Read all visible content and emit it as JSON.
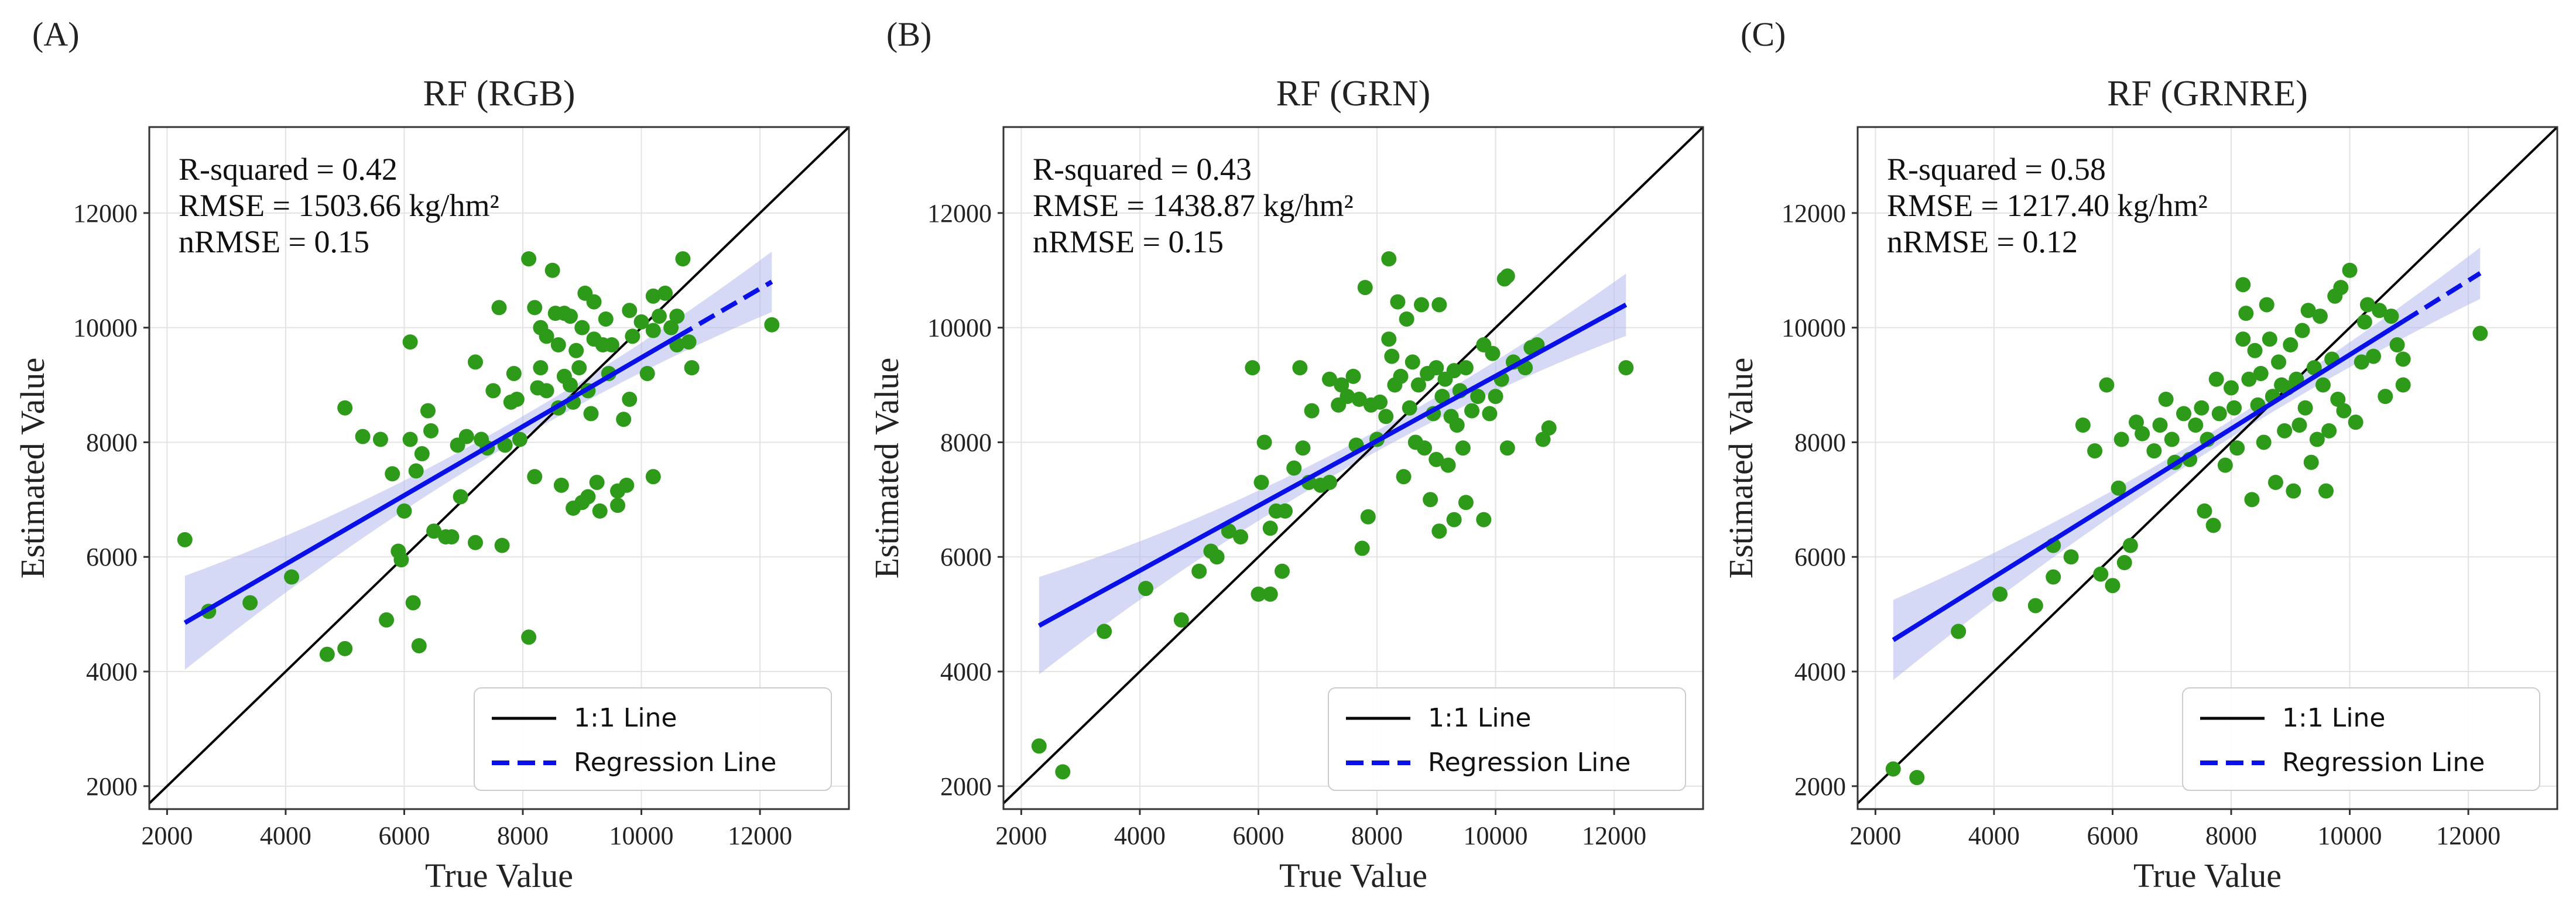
{
  "figure": {
    "panel_labels": [
      "(A)",
      "(B)",
      "(C)"
    ]
  },
  "colors": {
    "points": "#2e9a1a",
    "identity_line": "#000000",
    "regression_line": "#0a10e8",
    "confidence_band": "#b5b9ec",
    "grid": "#e3e3e3",
    "axes": "#333333"
  },
  "chart_data": [
    {
      "type": "scatter",
      "panel_label": "(A)",
      "title": "RF (RGB)",
      "xlabel": "True Value",
      "ylabel": "Estimated Value",
      "xlim": [
        1700,
        13500
      ],
      "ylim": [
        1600,
        13500
      ],
      "xticks": [
        2000,
        4000,
        6000,
        8000,
        10000,
        12000
      ],
      "yticks": [
        2000,
        4000,
        6000,
        8000,
        10000,
        12000
      ],
      "grid": true,
      "stats": [
        "R-squared = 0.42",
        "RMSE = 1503.66 kg/hm²",
        "nRMSE = 0.15"
      ],
      "legend": {
        "position": "bottom-right",
        "identity_label": "1:1 Line",
        "regression_label": "Regression Line"
      },
      "regression": {
        "x": [
          2300,
          12200
        ],
        "y": [
          4850,
          10800
        ],
        "dashed_from": 10600
      },
      "band": {
        "halfwidth_ends": 820,
        "halfwidth_center": 180,
        "center_x": 8000
      },
      "points": [
        [
          2300,
          6300
        ],
        [
          2700,
          5050
        ],
        [
          3400,
          5200
        ],
        [
          4100,
          5650
        ],
        [
          4700,
          4300
        ],
        [
          5000,
          8600
        ],
        [
          5000,
          4400
        ],
        [
          5300,
          8100
        ],
        [
          5600,
          8050
        ],
        [
          5700,
          4900
        ],
        [
          5800,
          7450
        ],
        [
          5900,
          6100
        ],
        [
          5950,
          5950
        ],
        [
          6000,
          6800
        ],
        [
          6100,
          9750
        ],
        [
          6100,
          8050
        ],
        [
          6150,
          5200
        ],
        [
          6200,
          7500
        ],
        [
          6250,
          4450
        ],
        [
          6300,
          7800
        ],
        [
          6400,
          8550
        ],
        [
          6450,
          8200
        ],
        [
          6500,
          6450
        ],
        [
          6700,
          6350
        ],
        [
          6800,
          6350
        ],
        [
          6900,
          7950
        ],
        [
          6950,
          7050
        ],
        [
          7050,
          8100
        ],
        [
          7200,
          9400
        ],
        [
          7200,
          6250
        ],
        [
          7300,
          8050
        ],
        [
          7400,
          7900
        ],
        [
          7500,
          8900
        ],
        [
          7600,
          10350
        ],
        [
          7650,
          6200
        ],
        [
          7700,
          7950
        ],
        [
          7800,
          8700
        ],
        [
          7850,
          9200
        ],
        [
          7900,
          8750
        ],
        [
          7950,
          8050
        ],
        [
          8100,
          11200
        ],
        [
          8100,
          4600
        ],
        [
          8200,
          10350
        ],
        [
          8200,
          7400
        ],
        [
          8250,
          8950
        ],
        [
          8300,
          10000
        ],
        [
          8300,
          9300
        ],
        [
          8400,
          9850
        ],
        [
          8400,
          8900
        ],
        [
          8500,
          11000
        ],
        [
          8550,
          10250
        ],
        [
          8600,
          9700
        ],
        [
          8600,
          8600
        ],
        [
          8650,
          7250
        ],
        [
          8700,
          10250
        ],
        [
          8700,
          9150
        ],
        [
          8800,
          10200
        ],
        [
          8800,
          9000
        ],
        [
          8850,
          8700
        ],
        [
          8850,
          6850
        ],
        [
          8900,
          9600
        ],
        [
          8950,
          9300
        ],
        [
          9000,
          10000
        ],
        [
          9000,
          6950
        ],
        [
          9050,
          10600
        ],
        [
          9100,
          8900
        ],
        [
          9100,
          7050
        ],
        [
          9150,
          8500
        ],
        [
          9200,
          10450
        ],
        [
          9200,
          9800
        ],
        [
          9250,
          7300
        ],
        [
          9300,
          6800
        ],
        [
          9350,
          9700
        ],
        [
          9400,
          10150
        ],
        [
          9450,
          9200
        ],
        [
          9500,
          9700
        ],
        [
          9600,
          7150
        ],
        [
          9600,
          6900
        ],
        [
          9700,
          8400
        ],
        [
          9750,
          7250
        ],
        [
          9800,
          10300
        ],
        [
          9800,
          8750
        ],
        [
          9850,
          9850
        ],
        [
          10000,
          10100
        ],
        [
          10100,
          9200
        ],
        [
          10200,
          10550
        ],
        [
          10200,
          9950
        ],
        [
          10200,
          7400
        ],
        [
          10300,
          10200
        ],
        [
          10400,
          10600
        ],
        [
          10500,
          10000
        ],
        [
          10600,
          10200
        ],
        [
          10600,
          9700
        ],
        [
          10700,
          11200
        ],
        [
          10800,
          9750
        ],
        [
          10850,
          9300
        ],
        [
          12200,
          10050
        ]
      ]
    },
    {
      "type": "scatter",
      "panel_label": "(B)",
      "title": "RF (GRN)",
      "xlabel": "True Value",
      "ylabel": "Estimated Value",
      "xlim": [
        1700,
        13500
      ],
      "ylim": [
        1600,
        13500
      ],
      "xticks": [
        2000,
        4000,
        6000,
        8000,
        10000,
        12000
      ],
      "yticks": [
        2000,
        4000,
        6000,
        8000,
        10000,
        12000
      ],
      "grid": true,
      "stats": [
        "R-squared = 0.43",
        "RMSE = 1438.87 kg/hm²",
        "nRMSE = 0.15"
      ],
      "legend": {
        "position": "bottom-right",
        "identity_label": "1:1 Line",
        "regression_label": "Regression Line"
      },
      "regression": {
        "x": [
          2300,
          12200
        ],
        "y": [
          4800,
          10400
        ],
        "dashed_from": 12300
      },
      "band": {
        "halfwidth_ends": 850,
        "halfwidth_center": 180,
        "center_x": 8000
      },
      "points": [
        [
          2300,
          2700
        ],
        [
          2700,
          2250
        ],
        [
          3400,
          4700
        ],
        [
          4100,
          5450
        ],
        [
          4700,
          4900
        ],
        [
          5000,
          5750
        ],
        [
          5200,
          6100
        ],
        [
          5300,
          6000
        ],
        [
          5500,
          6450
        ],
        [
          5700,
          6350
        ],
        [
          5900,
          9300
        ],
        [
          6000,
          5350
        ],
        [
          6050,
          7300
        ],
        [
          6100,
          8000
        ],
        [
          6200,
          5350
        ],
        [
          6200,
          6500
        ],
        [
          6300,
          6800
        ],
        [
          6400,
          5750
        ],
        [
          6450,
          6800
        ],
        [
          6600,
          7550
        ],
        [
          6700,
          9300
        ],
        [
          6750,
          7900
        ],
        [
          6850,
          7300
        ],
        [
          6900,
          8550
        ],
        [
          7050,
          7250
        ],
        [
          7200,
          9100
        ],
        [
          7200,
          7300
        ],
        [
          7350,
          8650
        ],
        [
          7400,
          9000
        ],
        [
          7500,
          8800
        ],
        [
          7600,
          9150
        ],
        [
          7650,
          7950
        ],
        [
          7700,
          8750
        ],
        [
          7750,
          6150
        ],
        [
          7800,
          10700
        ],
        [
          7850,
          6700
        ],
        [
          7900,
          8650
        ],
        [
          8000,
          8050
        ],
        [
          8050,
          8700
        ],
        [
          8150,
          8450
        ],
        [
          8200,
          11200
        ],
        [
          8200,
          9800
        ],
        [
          8250,
          9500
        ],
        [
          8300,
          9000
        ],
        [
          8350,
          10450
        ],
        [
          8400,
          9150
        ],
        [
          8450,
          7400
        ],
        [
          8500,
          10150
        ],
        [
          8550,
          8600
        ],
        [
          8600,
          9400
        ],
        [
          8650,
          8000
        ],
        [
          8700,
          9000
        ],
        [
          8750,
          10400
        ],
        [
          8800,
          7900
        ],
        [
          8850,
          9200
        ],
        [
          8900,
          7000
        ],
        [
          8950,
          8500
        ],
        [
          9000,
          9300
        ],
        [
          9000,
          7700
        ],
        [
          9050,
          10400
        ],
        [
          9050,
          6450
        ],
        [
          9100,
          8800
        ],
        [
          9150,
          9100
        ],
        [
          9200,
          7600
        ],
        [
          9250,
          8450
        ],
        [
          9300,
          9250
        ],
        [
          9300,
          6650
        ],
        [
          9350,
          8300
        ],
        [
          9400,
          8900
        ],
        [
          9450,
          7900
        ],
        [
          9500,
          9300
        ],
        [
          9500,
          6950
        ],
        [
          9600,
          8550
        ],
        [
          9700,
          8800
        ],
        [
          9800,
          9700
        ],
        [
          9800,
          6650
        ],
        [
          9900,
          8500
        ],
        [
          9950,
          9550
        ],
        [
          10000,
          8800
        ],
        [
          10100,
          9100
        ],
        [
          10150,
          10850
        ],
        [
          10200,
          10900
        ],
        [
          10200,
          7900
        ],
        [
          10300,
          9400
        ],
        [
          10500,
          9300
        ],
        [
          10600,
          9650
        ],
        [
          10700,
          9700
        ],
        [
          10800,
          8050
        ],
        [
          10900,
          8250
        ],
        [
          12200,
          9300
        ]
      ]
    },
    {
      "type": "scatter",
      "panel_label": "(C)",
      "title": "RF (GRNRE)",
      "xlabel": "True Value",
      "ylabel": "Estimated Value",
      "xlim": [
        1700,
        13500
      ],
      "ylim": [
        1600,
        13500
      ],
      "xticks": [
        2000,
        4000,
        6000,
        8000,
        10000,
        12000
      ],
      "yticks": [
        2000,
        4000,
        6000,
        8000,
        10000,
        12000
      ],
      "grid": true,
      "stats": [
        "R-squared = 0.58",
        "RMSE = 1217.40 kg/hm²",
        "nRMSE = 0.12"
      ],
      "legend": {
        "position": "bottom-right",
        "identity_label": "1:1 Line",
        "regression_label": "Regression Line"
      },
      "regression": {
        "x": [
          2300,
          12200
        ],
        "y": [
          4550,
          10950
        ],
        "dashed_from": 10900
      },
      "band": {
        "halfwidth_ends": 700,
        "halfwidth_center": 150,
        "center_x": 8000
      },
      "points": [
        [
          2300,
          2300
        ],
        [
          2700,
          2150
        ],
        [
          3400,
          4700
        ],
        [
          4100,
          5350
        ],
        [
          4700,
          5150
        ],
        [
          5000,
          5650
        ],
        [
          5000,
          6200
        ],
        [
          5300,
          6000
        ],
        [
          5500,
          8300
        ],
        [
          5700,
          7850
        ],
        [
          5800,
          5700
        ],
        [
          5900,
          9000
        ],
        [
          6000,
          5500
        ],
        [
          6100,
          7200
        ],
        [
          6150,
          8050
        ],
        [
          6200,
          5900
        ],
        [
          6300,
          6200
        ],
        [
          6400,
          8350
        ],
        [
          6500,
          8150
        ],
        [
          6700,
          7850
        ],
        [
          6800,
          8300
        ],
        [
          6900,
          8750
        ],
        [
          7000,
          8050
        ],
        [
          7050,
          7650
        ],
        [
          7200,
          8500
        ],
        [
          7300,
          7700
        ],
        [
          7400,
          8300
        ],
        [
          7500,
          8600
        ],
        [
          7550,
          6800
        ],
        [
          7600,
          8050
        ],
        [
          7700,
          6550
        ],
        [
          7750,
          9100
        ],
        [
          7800,
          8500
        ],
        [
          7900,
          7600
        ],
        [
          8000,
          8950
        ],
        [
          8050,
          8600
        ],
        [
          8100,
          7900
        ],
        [
          8200,
          10750
        ],
        [
          8200,
          9800
        ],
        [
          8250,
          10250
        ],
        [
          8300,
          9100
        ],
        [
          8350,
          7000
        ],
        [
          8400,
          9600
        ],
        [
          8450,
          8650
        ],
        [
          8500,
          9200
        ],
        [
          8550,
          8000
        ],
        [
          8600,
          10400
        ],
        [
          8650,
          9800
        ],
        [
          8700,
          8800
        ],
        [
          8750,
          7300
        ],
        [
          8800,
          9400
        ],
        [
          8850,
          9000
        ],
        [
          8900,
          8200
        ],
        [
          8950,
          8950
        ],
        [
          9000,
          9700
        ],
        [
          9050,
          7150
        ],
        [
          9100,
          9100
        ],
        [
          9150,
          8300
        ],
        [
          9200,
          9950
        ],
        [
          9250,
          8600
        ],
        [
          9300,
          10300
        ],
        [
          9350,
          7650
        ],
        [
          9400,
          9300
        ],
        [
          9450,
          8050
        ],
        [
          9500,
          10200
        ],
        [
          9550,
          9000
        ],
        [
          9600,
          7150
        ],
        [
          9650,
          8200
        ],
        [
          9700,
          9450
        ],
        [
          9750,
          10550
        ],
        [
          9800,
          8750
        ],
        [
          9850,
          10700
        ],
        [
          9900,
          8550
        ],
        [
          10000,
          11000
        ],
        [
          10100,
          8350
        ],
        [
          10200,
          9400
        ],
        [
          10250,
          10100
        ],
        [
          10300,
          10400
        ],
        [
          10400,
          9500
        ],
        [
          10500,
          10300
        ],
        [
          10600,
          8800
        ],
        [
          10700,
          10200
        ],
        [
          10800,
          9700
        ],
        [
          10900,
          9000
        ],
        [
          10900,
          9450
        ],
        [
          12200,
          9900
        ]
      ]
    }
  ]
}
